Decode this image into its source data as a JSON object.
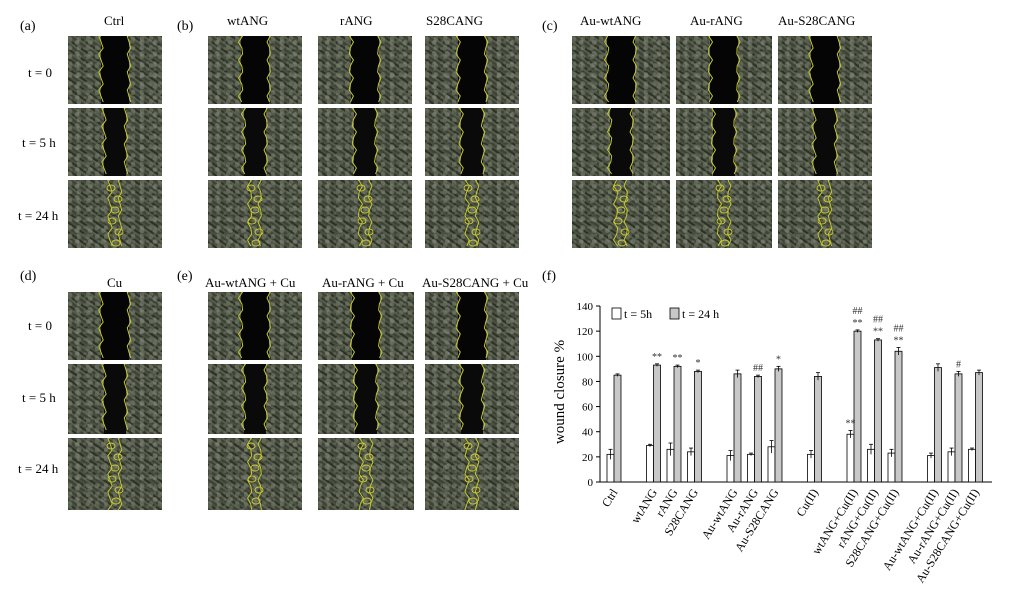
{
  "panels": {
    "a": {
      "label": "(a)",
      "cols": [
        "Ctrl"
      ]
    },
    "b": {
      "label": "(b)",
      "cols": [
        "wtANG",
        "rANG",
        "S28CANG"
      ]
    },
    "c": {
      "label": "(c)",
      "cols": [
        "Au-wtANG",
        "Au-rANG",
        "Au-S28CANG"
      ]
    },
    "d": {
      "label": "(d)",
      "cols": [
        "Cu"
      ]
    },
    "e": {
      "label": "(e)",
      "cols": [
        "Au-wtANG + Cu",
        "Au-rANG + Cu",
        "Au-S28CANG + Cu"
      ]
    },
    "f": {
      "label": "(f)"
    }
  },
  "time_labels": [
    "t = 0",
    "t = 5 h",
    "t = 24 h"
  ],
  "colors": {
    "bar_5h": "#ffffff",
    "bar_24h": "#c8c8c8",
    "outline": "#c8c832"
  },
  "chart_data": {
    "type": "bar",
    "ylabel": "wound closure %",
    "ylim": [
      0,
      140
    ],
    "yticks": [
      0,
      20,
      40,
      60,
      80,
      100,
      120,
      140
    ],
    "legend": [
      "t = 5h",
      "t = 24 h"
    ],
    "legend_position": "top-left",
    "categories": [
      "Ctrl",
      "wtANG",
      "rANG",
      "S28CANG",
      "Au-wtANG",
      "Au-rANG",
      "Au-S28CANG",
      "Cu(II)",
      "wtANG+Cu(II)",
      "rANG+Cu(II)",
      "S28CANG+Cu(II)",
      "Au-wtANG+Cu(II)",
      "Au-rANG+Cu(II)",
      "Au-S28CANG+Cu(II)"
    ],
    "groups": [
      [
        0
      ],
      [
        1,
        2,
        3
      ],
      [
        4,
        5,
        6
      ],
      [
        7
      ],
      [
        8,
        9,
        10
      ],
      [
        11,
        12,
        13
      ]
    ],
    "series": [
      {
        "name": "t = 5h",
        "values": [
          22,
          29,
          26,
          24,
          21,
          22,
          28,
          22,
          38,
          26,
          23,
          21,
          24,
          26
        ],
        "errors": [
          4,
          1,
          5,
          3,
          4,
          1,
          5,
          3,
          3,
          4,
          3,
          2,
          3,
          1
        ]
      },
      {
        "name": "t = 24 h",
        "values": [
          85,
          93,
          92,
          88,
          86,
          84,
          90,
          84,
          120,
          113,
          104,
          91,
          86,
          87
        ],
        "errors": [
          1,
          1,
          1,
          1,
          3,
          1,
          2,
          3,
          1,
          1,
          3,
          3,
          2,
          2
        ]
      }
    ],
    "annotations": [
      {
        "index": 1,
        "text": "**"
      },
      {
        "index": 2,
        "text": "**"
      },
      {
        "index": 3,
        "text": "*"
      },
      {
        "index": 5,
        "text": "##"
      },
      {
        "index": 6,
        "text": "*"
      },
      {
        "index": 8,
        "text": "**"
      },
      {
        "index": 8,
        "text": "##"
      },
      {
        "index": 9,
        "text": "**"
      },
      {
        "index": 9,
        "text": "##"
      },
      {
        "index": 10,
        "text": "**"
      },
      {
        "index": 10,
        "text": "##"
      },
      {
        "index": 12,
        "text": "#"
      },
      {
        "index": 8,
        "text": "**",
        "series": 0
      }
    ]
  }
}
